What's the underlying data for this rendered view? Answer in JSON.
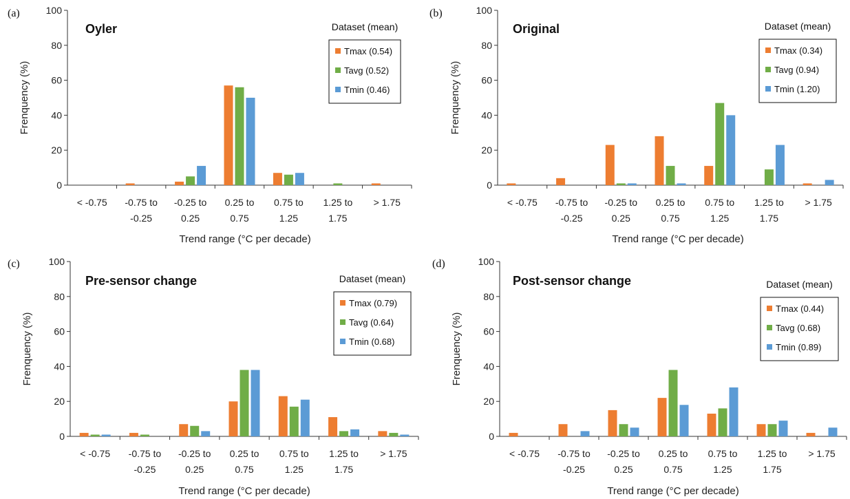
{
  "colors": {
    "Tmax": "#ed7d31",
    "Tavg": "#70ad47",
    "Tmin": "#5b9bd5"
  },
  "chart_data": [
    {
      "type": "bar",
      "panel_label": "(a)",
      "title": "Oyler",
      "xlabel": "Trend range (°C per decade)",
      "ylabel": "Frenquency (%)",
      "ylim": [
        0,
        100
      ],
      "yticks": [
        0,
        20,
        40,
        60,
        80,
        100
      ],
      "categories": [
        [
          "< -0.75"
        ],
        [
          "-0.75 to",
          "-0.25"
        ],
        [
          "-0.25 to",
          "0.25"
        ],
        [
          "0.25 to",
          "0.75"
        ],
        [
          "0.75 to",
          "1.25"
        ],
        [
          "1.25 to",
          "1.75"
        ],
        [
          "> 1.75"
        ]
      ],
      "legend_title": "Dataset (mean)",
      "legend_placement": "top-right",
      "legend_boxed": true,
      "series": [
        {
          "name": "Tmax (0.54)",
          "key": "Tmax",
          "values": [
            0,
            1,
            2,
            57,
            7,
            0,
            1
          ]
        },
        {
          "name": "Tavg (0.52)",
          "key": "Tavg",
          "values": [
            0,
            0,
            5,
            56,
            6,
            1,
            0
          ]
        },
        {
          "name": "Tmin (0.46)",
          "key": "Tmin",
          "values": [
            0,
            0,
            11,
            50,
            7,
            0,
            0
          ]
        }
      ]
    },
    {
      "type": "bar",
      "panel_label": "(b)",
      "title": "Original",
      "xlabel": "Trend range (°C per decade)",
      "ylabel": "Frenquency (%)",
      "ylim": [
        0,
        100
      ],
      "yticks": [
        0,
        20,
        40,
        60,
        80,
        100
      ],
      "categories": [
        [
          "< -0.75"
        ],
        [
          "-0.75 to",
          "-0.25"
        ],
        [
          "-0.25 to",
          "0.25"
        ],
        [
          "0.25 to",
          "0.75"
        ],
        [
          "0.75 to",
          "1.25"
        ],
        [
          "1.25 to",
          "1.75"
        ],
        [
          "> 1.75"
        ]
      ],
      "legend_title": "Dataset (mean)",
      "legend_placement": "top-right",
      "legend_boxed": true,
      "series": [
        {
          "name": "Tmax (0.34)",
          "key": "Tmax",
          "values": [
            1,
            4,
            23,
            28,
            11,
            0,
            1
          ]
        },
        {
          "name": "Tavg (0.94)",
          "key": "Tavg",
          "values": [
            0,
            0,
            1,
            11,
            47,
            9,
            0
          ]
        },
        {
          "name": "Tmin (1.20)",
          "key": "Tmin",
          "values": [
            0,
            0,
            1,
            1,
            40,
            23,
            3
          ]
        }
      ]
    },
    {
      "type": "bar",
      "panel_label": "(c)",
      "title": "Pre-sensor change",
      "xlabel": "Trend range (°C per decade)",
      "ylabel": "Frenquency (%)",
      "ylim": [
        0,
        100
      ],
      "yticks": [
        0,
        20,
        40,
        60,
        80,
        100
      ],
      "categories": [
        [
          "< -0.75"
        ],
        [
          "-0.75 to",
          "-0.25"
        ],
        [
          "-0.25 to",
          "0.25"
        ],
        [
          "0.25 to",
          "0.75"
        ],
        [
          "0.75 to",
          "1.25"
        ],
        [
          "1.25 to",
          "1.75"
        ],
        [
          "> 1.75"
        ]
      ],
      "legend_title": "Dataset (mean)",
      "legend_placement": "top-right",
      "legend_boxed": true,
      "series": [
        {
          "name": "Tmax (0.79)",
          "key": "Tmax",
          "values": [
            2,
            2,
            7,
            20,
            23,
            11,
            3
          ]
        },
        {
          "name": "Tavg (0.64)",
          "key": "Tavg",
          "values": [
            1,
            1,
            6,
            38,
            17,
            3,
            2
          ]
        },
        {
          "name": "Tmin (0.68)",
          "key": "Tmin",
          "values": [
            1,
            0,
            3,
            38,
            21,
            4,
            1
          ]
        }
      ]
    },
    {
      "type": "bar",
      "panel_label": "(d)",
      "title": "Post-sensor change",
      "xlabel": "Trend range (°C per decade)",
      "ylabel": "Frenquency (%)",
      "ylim": [
        0,
        100
      ],
      "yticks": [
        0,
        20,
        40,
        60,
        80,
        100
      ],
      "categories": [
        [
          "< -0.75"
        ],
        [
          "-0.75 to",
          "-0.25"
        ],
        [
          "-0.25 to",
          "0.25"
        ],
        [
          "0.25 to",
          "0.75"
        ],
        [
          "0.75 to",
          "1.25"
        ],
        [
          "1.25 to",
          "1.75"
        ],
        [
          "> 1.75"
        ]
      ],
      "legend_title": "Dataset (mean)",
      "legend_placement": "top-right",
      "legend_boxed": true,
      "series": [
        {
          "name": "Tmax (0.44)",
          "key": "Tmax",
          "values": [
            2,
            7,
            15,
            22,
            13,
            7,
            2
          ]
        },
        {
          "name": "Tavg (0.68)",
          "key": "Tavg",
          "values": [
            0,
            0,
            7,
            38,
            16,
            7,
            0
          ]
        },
        {
          "name": "Tmin (0.89)",
          "key": "Tmin",
          "values": [
            0,
            3,
            5,
            18,
            28,
            9,
            5
          ]
        }
      ]
    }
  ]
}
